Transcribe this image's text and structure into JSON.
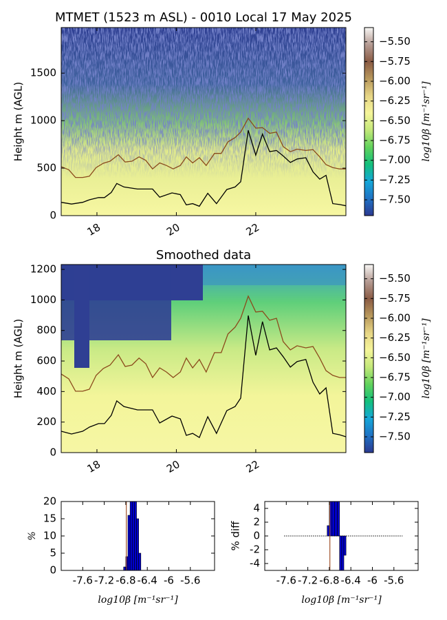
{
  "chart_data": [
    {
      "type": "heatmap",
      "title": "MTMET (1523 m ASL) - 0010 Local 17 May 2025",
      "ylabel": "Height m (AGL)",
      "xlim": [
        17.1,
        24.27
      ],
      "xticks": [
        18,
        20,
        22
      ],
      "ylim": [
        0,
        1980
      ],
      "yticks": [
        0,
        500,
        1000,
        1500
      ],
      "series": [
        {
          "color": "#000000",
          "x": [
            17.1,
            17.36,
            17.64,
            17.81,
            18.04,
            18.19,
            18.36,
            18.5,
            18.68,
            19.02,
            19.4,
            19.58,
            19.89,
            20.1,
            20.25,
            20.41,
            20.58,
            20.79,
            21.01,
            21.27,
            21.48,
            21.62,
            21.81,
            22.0,
            22.17,
            22.35,
            22.52,
            22.69,
            22.87,
            23.04,
            23.26,
            23.44,
            23.61,
            23.77,
            23.94,
            24.11,
            24.27
          ],
          "values": [
            140,
            122,
            140,
            167,
            190,
            190,
            244,
            339,
            302,
            280,
            280,
            194,
            239,
            221,
            113,
            126,
            99,
            235,
            126,
            275,
            302,
            357,
            898,
            637,
            858,
            673,
            686,
            628,
            560,
            596,
            610,
            461,
            384,
            424,
            126,
            117,
            104
          ]
        },
        {
          "color": "#8b4a1c",
          "x": [
            17.1,
            17.29,
            17.46,
            17.64,
            17.81,
            17.98,
            18.16,
            18.33,
            18.54,
            18.71,
            18.88,
            19.06,
            19.23,
            19.4,
            19.58,
            19.75,
            19.92,
            20.1,
            20.25,
            20.41,
            20.58,
            20.75,
            20.96,
            21.13,
            21.3,
            21.48,
            21.62,
            21.81,
            22.0,
            22.17,
            22.35,
            22.52,
            22.69,
            22.87,
            23.04,
            23.26,
            23.44,
            23.61,
            23.77,
            23.94,
            24.11,
            24.27
          ],
          "values": [
            515,
            483,
            402,
            402,
            415,
            506,
            551,
            573,
            641,
            564,
            573,
            619,
            582,
            492,
            555,
            528,
            492,
            528,
            619,
            555,
            610,
            528,
            655,
            655,
            777,
            822,
            880,
            1025,
            921,
            926,
            867,
            880,
            727,
            673,
            700,
            686,
            695,
            619,
            537,
            506,
            492,
            492
          ]
        }
      ],
      "colorbar": {
        "label": "log10β [m⁻¹sr⁻¹]",
        "lim": [
          -7.7,
          -5.32
        ],
        "colormap": [
          "#2b3990",
          "#1f72c4",
          "#15a7d8",
          "#13c07c",
          "#62d25c",
          "#c3e87a",
          "#f5f59a",
          "#e6d585",
          "#b8985c",
          "#8a5b44",
          "#b49a92",
          "#f8f7f5"
        ],
        "ticks": [
          {
            "value": -5.5,
            "label": "−5.50"
          },
          {
            "value": -5.75,
            "label": "−5.75"
          },
          {
            "value": -6.0,
            "label": "−6.00"
          },
          {
            "value": -6.25,
            "label": "−6.25"
          },
          {
            "value": -6.5,
            "label": "−6.50"
          },
          {
            "value": -6.75,
            "label": "−6.75"
          },
          {
            "value": -7.0,
            "label": "−7.00"
          },
          {
            "value": -7.25,
            "label": "−7.25"
          },
          {
            "value": -7.5,
            "label": "−7.50"
          }
        ]
      }
    },
    {
      "type": "heatmap",
      "title": "Smoothed data",
      "ylabel": "Height m (AGL)",
      "xlim": [
        17.1,
        24.27
      ],
      "xticks": [
        18,
        20,
        22
      ],
      "ylim": [
        0,
        1232
      ],
      "yticks": [
        0,
        200,
        400,
        600,
        800,
        1000,
        1200
      ],
      "series": [
        {
          "color": "#000000",
          "x": [
            17.1,
            17.36,
            17.64,
            17.81,
            18.04,
            18.19,
            18.36,
            18.5,
            18.68,
            19.02,
            19.4,
            19.58,
            19.89,
            20.1,
            20.25,
            20.41,
            20.58,
            20.79,
            21.01,
            21.27,
            21.48,
            21.62,
            21.81,
            22.0,
            22.17,
            22.35,
            22.52,
            22.69,
            22.87,
            23.04,
            23.26,
            23.44,
            23.61,
            23.77,
            23.94,
            24.11,
            24.27
          ],
          "values": [
            140,
            122,
            140,
            167,
            190,
            190,
            244,
            339,
            302,
            280,
            280,
            194,
            239,
            221,
            113,
            126,
            99,
            235,
            126,
            275,
            302,
            357,
            898,
            637,
            858,
            673,
            686,
            628,
            560,
            596,
            610,
            461,
            384,
            424,
            126,
            117,
            104
          ]
        },
        {
          "color": "#8b4a1c",
          "x": [
            17.1,
            17.29,
            17.46,
            17.64,
            17.81,
            17.98,
            18.16,
            18.33,
            18.54,
            18.71,
            18.88,
            19.06,
            19.23,
            19.4,
            19.58,
            19.75,
            19.92,
            20.1,
            20.25,
            20.41,
            20.58,
            20.75,
            20.96,
            21.13,
            21.3,
            21.48,
            21.62,
            21.81,
            22.0,
            22.17,
            22.35,
            22.52,
            22.69,
            22.87,
            23.04,
            23.26,
            23.44,
            23.61,
            23.77,
            23.94,
            24.11,
            24.27
          ],
          "values": [
            515,
            483,
            402,
            402,
            415,
            506,
            551,
            573,
            641,
            564,
            573,
            619,
            582,
            492,
            555,
            528,
            492,
            528,
            619,
            555,
            610,
            528,
            655,
            655,
            777,
            822,
            880,
            1025,
            921,
            926,
            867,
            880,
            727,
            673,
            700,
            686,
            695,
            619,
            537,
            506,
            492,
            492
          ]
        }
      ],
      "colorbar": {
        "label": "log10β [m⁻¹sr⁻¹]",
        "lim": [
          -7.7,
          -5.32
        ],
        "colormap": [
          "#2b3990",
          "#1f72c4",
          "#15a7d8",
          "#13c07c",
          "#62d25c",
          "#c3e87a",
          "#f5f59a",
          "#e6d585",
          "#b8985c",
          "#8a5b44",
          "#b49a92",
          "#f8f7f5"
        ],
        "ticks": [
          {
            "value": -5.5,
            "label": "−5.50"
          },
          {
            "value": -5.75,
            "label": "−5.75"
          },
          {
            "value": -6.0,
            "label": "−6.00"
          },
          {
            "value": -6.25,
            "label": "−6.25"
          },
          {
            "value": -6.5,
            "label": "−6.50"
          },
          {
            "value": -6.75,
            "label": "−6.75"
          },
          {
            "value": -7.0,
            "label": "−7.00"
          },
          {
            "value": -7.25,
            "label": "−7.25"
          },
          {
            "value": -7.5,
            "label": "−7.50"
          }
        ]
      }
    },
    {
      "type": "histogram",
      "ylabel": "%",
      "xlabel": "log10β [m⁻¹sr⁻¹]",
      "xlim": [
        -8.0,
        -5.15
      ],
      "xticks": [
        -7.6,
        -7.2,
        -6.8,
        -6.4,
        -6.0,
        -5.6
      ],
      "ylim": [
        0,
        20
      ],
      "yticks": [
        0,
        5,
        10,
        15,
        20
      ],
      "bins": [
        -6.84,
        -6.8,
        -6.76,
        -6.72,
        -6.68,
        -6.64,
        -6.6,
        -6.56,
        -6.52
      ],
      "values": [
        1,
        4,
        16,
        21,
        20,
        20,
        15,
        5
      ],
      "color": "#0000cc",
      "vline": -6.79,
      "vline_color": "#a0522d"
    },
    {
      "type": "histogram",
      "ylabel": "% diff",
      "xlabel": "log10β [m⁻¹sr⁻¹]",
      "xlim": [
        -8.0,
        -5.15
      ],
      "xticks": [
        -7.6,
        -7.2,
        -6.8,
        -6.4,
        -6.0,
        -5.6
      ],
      "ylim": [
        -5,
        5
      ],
      "yticks": [
        -4,
        -2,
        0,
        2,
        4
      ],
      "bins": [
        -6.84,
        -6.8,
        -6.75,
        -6.7,
        -6.65,
        -6.61,
        -6.57,
        -6.53,
        -6.49
      ],
      "values": [
        1.5,
        5,
        5,
        5,
        5,
        -5,
        -5,
        -2.8
      ],
      "color": "#0000cc",
      "vline": -6.79,
      "vline_color": "#a0522d",
      "baseline": {
        "xlim": [
          -7.64,
          -5.44
        ],
        "style": "dotted"
      }
    }
  ]
}
